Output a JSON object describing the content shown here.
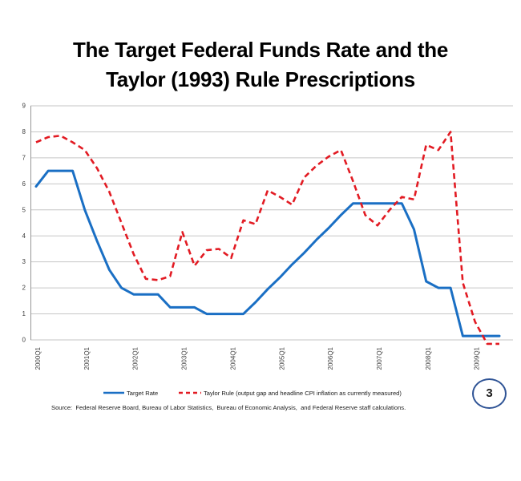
{
  "slide": {
    "title_line1": "The Target Federal Funds Rate and the",
    "title_line2": "Taylor (1993) Rule Prescriptions",
    "source": "Source:  Federal Reserve Board, Bureau of Labor Statistics,  Bureau of Economic Analysis,  and Federal Reserve staff calculations.",
    "page_number": "3",
    "page_badge_color": "#2E5395"
  },
  "chart_data": {
    "type": "line",
    "title": "",
    "xlabel": "",
    "ylabel": "",
    "ylim": [
      0,
      9
    ],
    "yticks": [
      0,
      1,
      2,
      3,
      4,
      5,
      6,
      7,
      8,
      9
    ],
    "grid": true,
    "gridline_color": "#C6C6C6",
    "axis_color": "#969696",
    "legend_position": "bottom",
    "x_tick_labels": [
      "2000Q1",
      "2001Q1",
      "2002Q1",
      "2003Q1",
      "2004Q1",
      "2005Q1",
      "2006Q1",
      "2007Q1",
      "2008Q1",
      "2009Q1"
    ],
    "quarters": [
      "2000Q1",
      "2000Q2",
      "2000Q3",
      "2000Q4",
      "2001Q1",
      "2001Q2",
      "2001Q3",
      "2001Q4",
      "2002Q1",
      "2002Q2",
      "2002Q3",
      "2002Q4",
      "2003Q1",
      "2003Q2",
      "2003Q3",
      "2003Q4",
      "2004Q1",
      "2004Q2",
      "2004Q3",
      "2004Q4",
      "2005Q1",
      "2005Q2",
      "2005Q3",
      "2005Q4",
      "2006Q1",
      "2006Q2",
      "2006Q3",
      "2006Q4",
      "2007Q1",
      "2007Q2",
      "2007Q3",
      "2007Q4",
      "2008Q1",
      "2008Q2",
      "2008Q3",
      "2008Q4",
      "2009Q1",
      "2009Q2",
      "2009Q3"
    ],
    "series": [
      {
        "name": "Target Rate",
        "color": "#1A6FC4",
        "style": "solid",
        "values": [
          5.9,
          6.5,
          6.5,
          6.5,
          5.0,
          3.8,
          2.7,
          2.0,
          1.75,
          1.75,
          1.75,
          1.25,
          1.25,
          1.25,
          1.0,
          1.0,
          1.0,
          1.0,
          1.45,
          1.95,
          2.4,
          2.9,
          3.35,
          3.85,
          4.3,
          4.8,
          5.25,
          5.25,
          5.25,
          5.25,
          5.25,
          4.25,
          2.25,
          2.0,
          2.0,
          0.15,
          0.15,
          0.15,
          0.15
        ]
      },
      {
        "name": "Taylor Rule (output gap and headline CPI inflation as currently measured)",
        "color": "#E21B23",
        "style": "dashed",
        "values": [
          7.6,
          7.8,
          7.85,
          7.6,
          7.3,
          6.6,
          5.7,
          4.5,
          3.3,
          2.35,
          2.3,
          2.45,
          4.15,
          2.85,
          3.45,
          3.5,
          3.15,
          4.6,
          4.45,
          5.75,
          5.5,
          5.2,
          6.25,
          6.7,
          7.05,
          7.3,
          6.1,
          4.8,
          4.4,
          5.0,
          5.5,
          5.4,
          7.5,
          7.3,
          8.0,
          2.2,
          0.7,
          -0.15,
          -0.15
        ]
      }
    ]
  }
}
